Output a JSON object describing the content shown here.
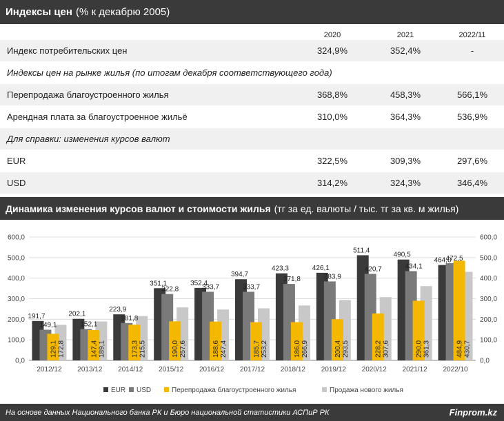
{
  "table_title": "Индексы цен",
  "table_subtitle": "(% к декабрю 2005)",
  "columns": [
    "2020",
    "2021",
    "2022/11"
  ],
  "rows": [
    {
      "label": "Индекс потребительских цен",
      "italic": false,
      "values": [
        "324,9%",
        "352,4%",
        "-"
      ]
    },
    {
      "label": "Индексы цен на рынке жилья (по итогам декабря соответствующего года)",
      "italic": true,
      "values": [
        "",
        "",
        ""
      ]
    },
    {
      "label": "Перепродажа благоустроенного жилья",
      "italic": false,
      "values": [
        "368,8%",
        "458,3%",
        "566,1%"
      ]
    },
    {
      "label": "Арендная плата за благоустроенное жильё",
      "italic": false,
      "values": [
        "310,0%",
        "364,3%",
        "536,9%"
      ]
    },
    {
      "label": "Для справки: изменения курсов валют",
      "italic": true,
      "values": [
        "",
        "",
        ""
      ]
    },
    {
      "label": "EUR",
      "italic": false,
      "values": [
        "322,5%",
        "309,3%",
        "297,6%"
      ]
    },
    {
      "label": "USD",
      "italic": false,
      "values": [
        "314,2%",
        "324,3%",
        "346,4%"
      ]
    }
  ],
  "chart_title": "Динамика изменения курсов валют и стоимости жилья",
  "chart_subtitle": "(тг за ед. валюты / тыс. тг за кв. м жилья)",
  "chart_data": {
    "type": "bar",
    "categories": [
      "2012/12",
      "2013/12",
      "2014/12",
      "2015/12",
      "2016/12",
      "2017/12",
      "2018/12",
      "2019/12",
      "2020/12",
      "2021/12",
      "2022/10"
    ],
    "series": [
      {
        "name": "EUR",
        "color": "#3a3a3a",
        "values": [
          191.7,
          202.1,
          223.9,
          351.1,
          352.4,
          394.7,
          423.3,
          426.1,
          511.4,
          490.5,
          464.0
        ],
        "labels": [
          "191,7",
          "202,1",
          "223,9",
          "351,1",
          "352,4",
          "394,7",
          "423,3",
          "426,1",
          "511,4",
          "490,5",
          "464,0"
        ]
      },
      {
        "name": "USD",
        "color": "#7a7a7a",
        "values": [
          149.1,
          152.1,
          181.8,
          322.8,
          333.7,
          333.7,
          371.8,
          383.9,
          420.7,
          434.1,
          472.5
        ],
        "labels": [
          "149,1",
          "152,1",
          "181,8",
          "322,8",
          "333,7",
          "333,7",
          "371,8",
          "383,9",
          "420,7",
          "434,1",
          "472,5"
        ]
      },
      {
        "name": "Перепродажа благоустроенного жилья",
        "color": "#f5b800",
        "values": [
          129.1,
          147.4,
          173.3,
          190.0,
          188.6,
          185.7,
          186.0,
          200.4,
          228.2,
          290.0,
          484.9
        ],
        "labels": [
          "129,1",
          "147,4",
          "173,3",
          "190,0",
          "188,6",
          "185,7",
          "186,0",
          "200,4",
          "228,2",
          "290,0",
          "484,9"
        ]
      },
      {
        "name": "Продажа нового жилья",
        "color": "#c8c8c8",
        "values": [
          172.8,
          189.1,
          215.5,
          257.6,
          247.4,
          253.2,
          266.9,
          293.5,
          307.6,
          361.3,
          430.7
        ],
        "labels": [
          "172,8",
          "189,1",
          "215,5",
          "257,6",
          "247,4",
          "253,2",
          "266,9",
          "293,5",
          "307,6",
          "361,3",
          "430,7"
        ]
      }
    ],
    "ylim": [
      0,
      600
    ],
    "yticks": [
      "0,0",
      "100,0",
      "200,0",
      "300,0",
      "400,0",
      "500,0",
      "600,0"
    ],
    "grid": true,
    "legend": "bottom"
  },
  "footer_text": "На основе данных Национального банка РК и Бюро национальной статистики АСПиР РК",
  "brand": "Finprom.kz"
}
